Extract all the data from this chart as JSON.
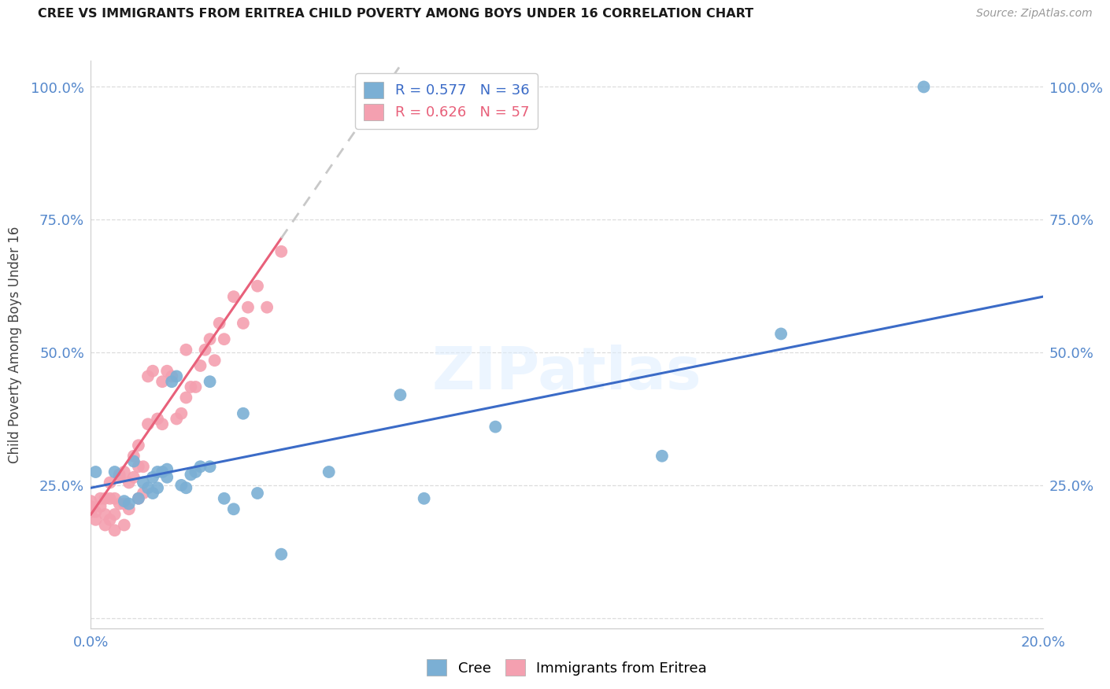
{
  "title": "CREE VS IMMIGRANTS FROM ERITREA CHILD POVERTY AMONG BOYS UNDER 16 CORRELATION CHART",
  "source": "Source: ZipAtlas.com",
  "ylabel": "Child Poverty Among Boys Under 16",
  "watermark": "ZIPatlas",
  "R_cree": 0.577,
  "N_cree": 36,
  "R_eritrea": 0.626,
  "N_eritrea": 57,
  "xlim": [
    0.0,
    0.2
  ],
  "ylim": [
    -0.02,
    1.05
  ],
  "yticks": [
    0.0,
    0.25,
    0.5,
    0.75,
    1.0
  ],
  "ytick_labels": [
    "",
    "25.0%",
    "50.0%",
    "75.0%",
    "100.0%"
  ],
  "xticks": [
    0.0,
    0.05,
    0.1,
    0.15,
    0.2
  ],
  "xtick_labels": [
    "0.0%",
    "",
    "",
    "",
    "20.0%"
  ],
  "cree_color": "#7BAFD4",
  "eritrea_color": "#F4A0B0",
  "trend_cree_color": "#3B6BC7",
  "trend_eritrea_color": "#E8607A",
  "trend_ext_color": "#C8C8C8",
  "background_color": "#FFFFFF",
  "grid_color": "#DDDDDD",
  "tick_color": "#5588CC",
  "cree_points_x": [
    0.001,
    0.005,
    0.007,
    0.008,
    0.009,
    0.01,
    0.011,
    0.012,
    0.013,
    0.013,
    0.014,
    0.014,
    0.015,
    0.016,
    0.016,
    0.017,
    0.018,
    0.019,
    0.02,
    0.021,
    0.022,
    0.023,
    0.025,
    0.025,
    0.028,
    0.03,
    0.032,
    0.035,
    0.04,
    0.05,
    0.065,
    0.07,
    0.085,
    0.12,
    0.145,
    0.175
  ],
  "cree_points_y": [
    0.275,
    0.275,
    0.22,
    0.215,
    0.295,
    0.225,
    0.255,
    0.245,
    0.235,
    0.265,
    0.245,
    0.275,
    0.275,
    0.28,
    0.265,
    0.445,
    0.455,
    0.25,
    0.245,
    0.27,
    0.275,
    0.285,
    0.285,
    0.445,
    0.225,
    0.205,
    0.385,
    0.235,
    0.12,
    0.275,
    0.42,
    0.225,
    0.36,
    0.305,
    0.535,
    1.0
  ],
  "eritrea_points_x": [
    0.0,
    0.0,
    0.0,
    0.001,
    0.001,
    0.002,
    0.002,
    0.003,
    0.003,
    0.003,
    0.004,
    0.004,
    0.004,
    0.005,
    0.005,
    0.005,
    0.006,
    0.006,
    0.006,
    0.007,
    0.007,
    0.007,
    0.008,
    0.008,
    0.009,
    0.009,
    0.01,
    0.01,
    0.01,
    0.011,
    0.011,
    0.012,
    0.012,
    0.013,
    0.014,
    0.015,
    0.015,
    0.016,
    0.017,
    0.018,
    0.019,
    0.02,
    0.02,
    0.021,
    0.022,
    0.023,
    0.024,
    0.025,
    0.026,
    0.027,
    0.028,
    0.03,
    0.032,
    0.033,
    0.035,
    0.037,
    0.04
  ],
  "eritrea_points_y": [
    0.2,
    0.21,
    0.22,
    0.185,
    0.2,
    0.21,
    0.225,
    0.175,
    0.195,
    0.225,
    0.185,
    0.225,
    0.255,
    0.165,
    0.195,
    0.225,
    0.215,
    0.265,
    0.27,
    0.175,
    0.215,
    0.275,
    0.205,
    0.255,
    0.265,
    0.305,
    0.225,
    0.285,
    0.325,
    0.235,
    0.285,
    0.365,
    0.455,
    0.465,
    0.375,
    0.365,
    0.445,
    0.465,
    0.455,
    0.375,
    0.385,
    0.415,
    0.505,
    0.435,
    0.435,
    0.475,
    0.505,
    0.525,
    0.485,
    0.555,
    0.525,
    0.605,
    0.555,
    0.585,
    0.625,
    0.585,
    0.69
  ],
  "trend_cree_intercept": 0.245,
  "trend_cree_slope": 1.8,
  "trend_eritrea_intercept": 0.195,
  "trend_eritrea_slope": 13.0,
  "trend_cree_xmax": 0.2,
  "trend_eritrea_solid_xmax": 0.04,
  "trend_eritrea_ext_xmax": 0.2
}
